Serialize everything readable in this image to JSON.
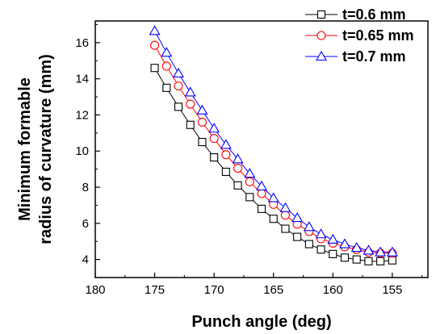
{
  "chart_data": {
    "type": "line",
    "xlabel": "Punch angle (deg)",
    "ylabel_lines": [
      "Minimum formable",
      "radius of curvature (mm)"
    ],
    "xlim": [
      180,
      152
    ],
    "ylim": [
      3,
      17.2
    ],
    "x_ticks": [
      180,
      175,
      170,
      165,
      160,
      155
    ],
    "y_ticks": [
      4,
      6,
      8,
      10,
      12,
      14,
      16
    ],
    "legend_position": "top-right",
    "series": [
      {
        "name": "t=0.6 mm",
        "color": "#000000",
        "marker": "square",
        "x": [
          175,
          174,
          173,
          172,
          171,
          170,
          169,
          168,
          167,
          166,
          165,
          164,
          163,
          162,
          161,
          160,
          159,
          158,
          157,
          156,
          155
        ],
        "y": [
          14.6,
          13.5,
          12.45,
          11.45,
          10.5,
          9.65,
          8.85,
          8.1,
          7.45,
          6.8,
          6.25,
          5.7,
          5.25,
          4.85,
          4.55,
          4.3,
          4.1,
          4.0,
          3.9,
          3.9,
          3.95
        ]
      },
      {
        "name": "t=0.65 mm",
        "color": "#ff0000",
        "marker": "circle",
        "x": [
          175,
          174,
          173,
          172,
          171,
          170,
          169,
          168,
          167,
          166,
          165,
          164,
          163,
          162,
          161,
          160,
          159,
          158,
          157,
          156,
          155
        ],
        "y": [
          15.85,
          14.7,
          13.6,
          12.6,
          11.6,
          10.7,
          9.8,
          9.05,
          8.3,
          7.65,
          7.05,
          6.45,
          5.95,
          5.55,
          5.15,
          4.9,
          4.7,
          4.55,
          4.4,
          4.35,
          4.35
        ]
      },
      {
        "name": "t=0.7 mm",
        "color": "#0000ff",
        "marker": "triangle",
        "x": [
          175,
          174,
          173,
          172,
          171,
          170,
          169,
          168,
          167,
          166,
          165,
          164,
          163,
          162,
          161,
          160,
          159,
          158,
          157,
          156,
          155
        ],
        "y": [
          16.65,
          15.45,
          14.3,
          13.25,
          12.25,
          11.25,
          10.35,
          9.55,
          8.75,
          8.05,
          7.4,
          6.85,
          6.3,
          5.8,
          5.4,
          5.1,
          4.85,
          4.65,
          4.5,
          4.4,
          4.4
        ]
      }
    ]
  }
}
